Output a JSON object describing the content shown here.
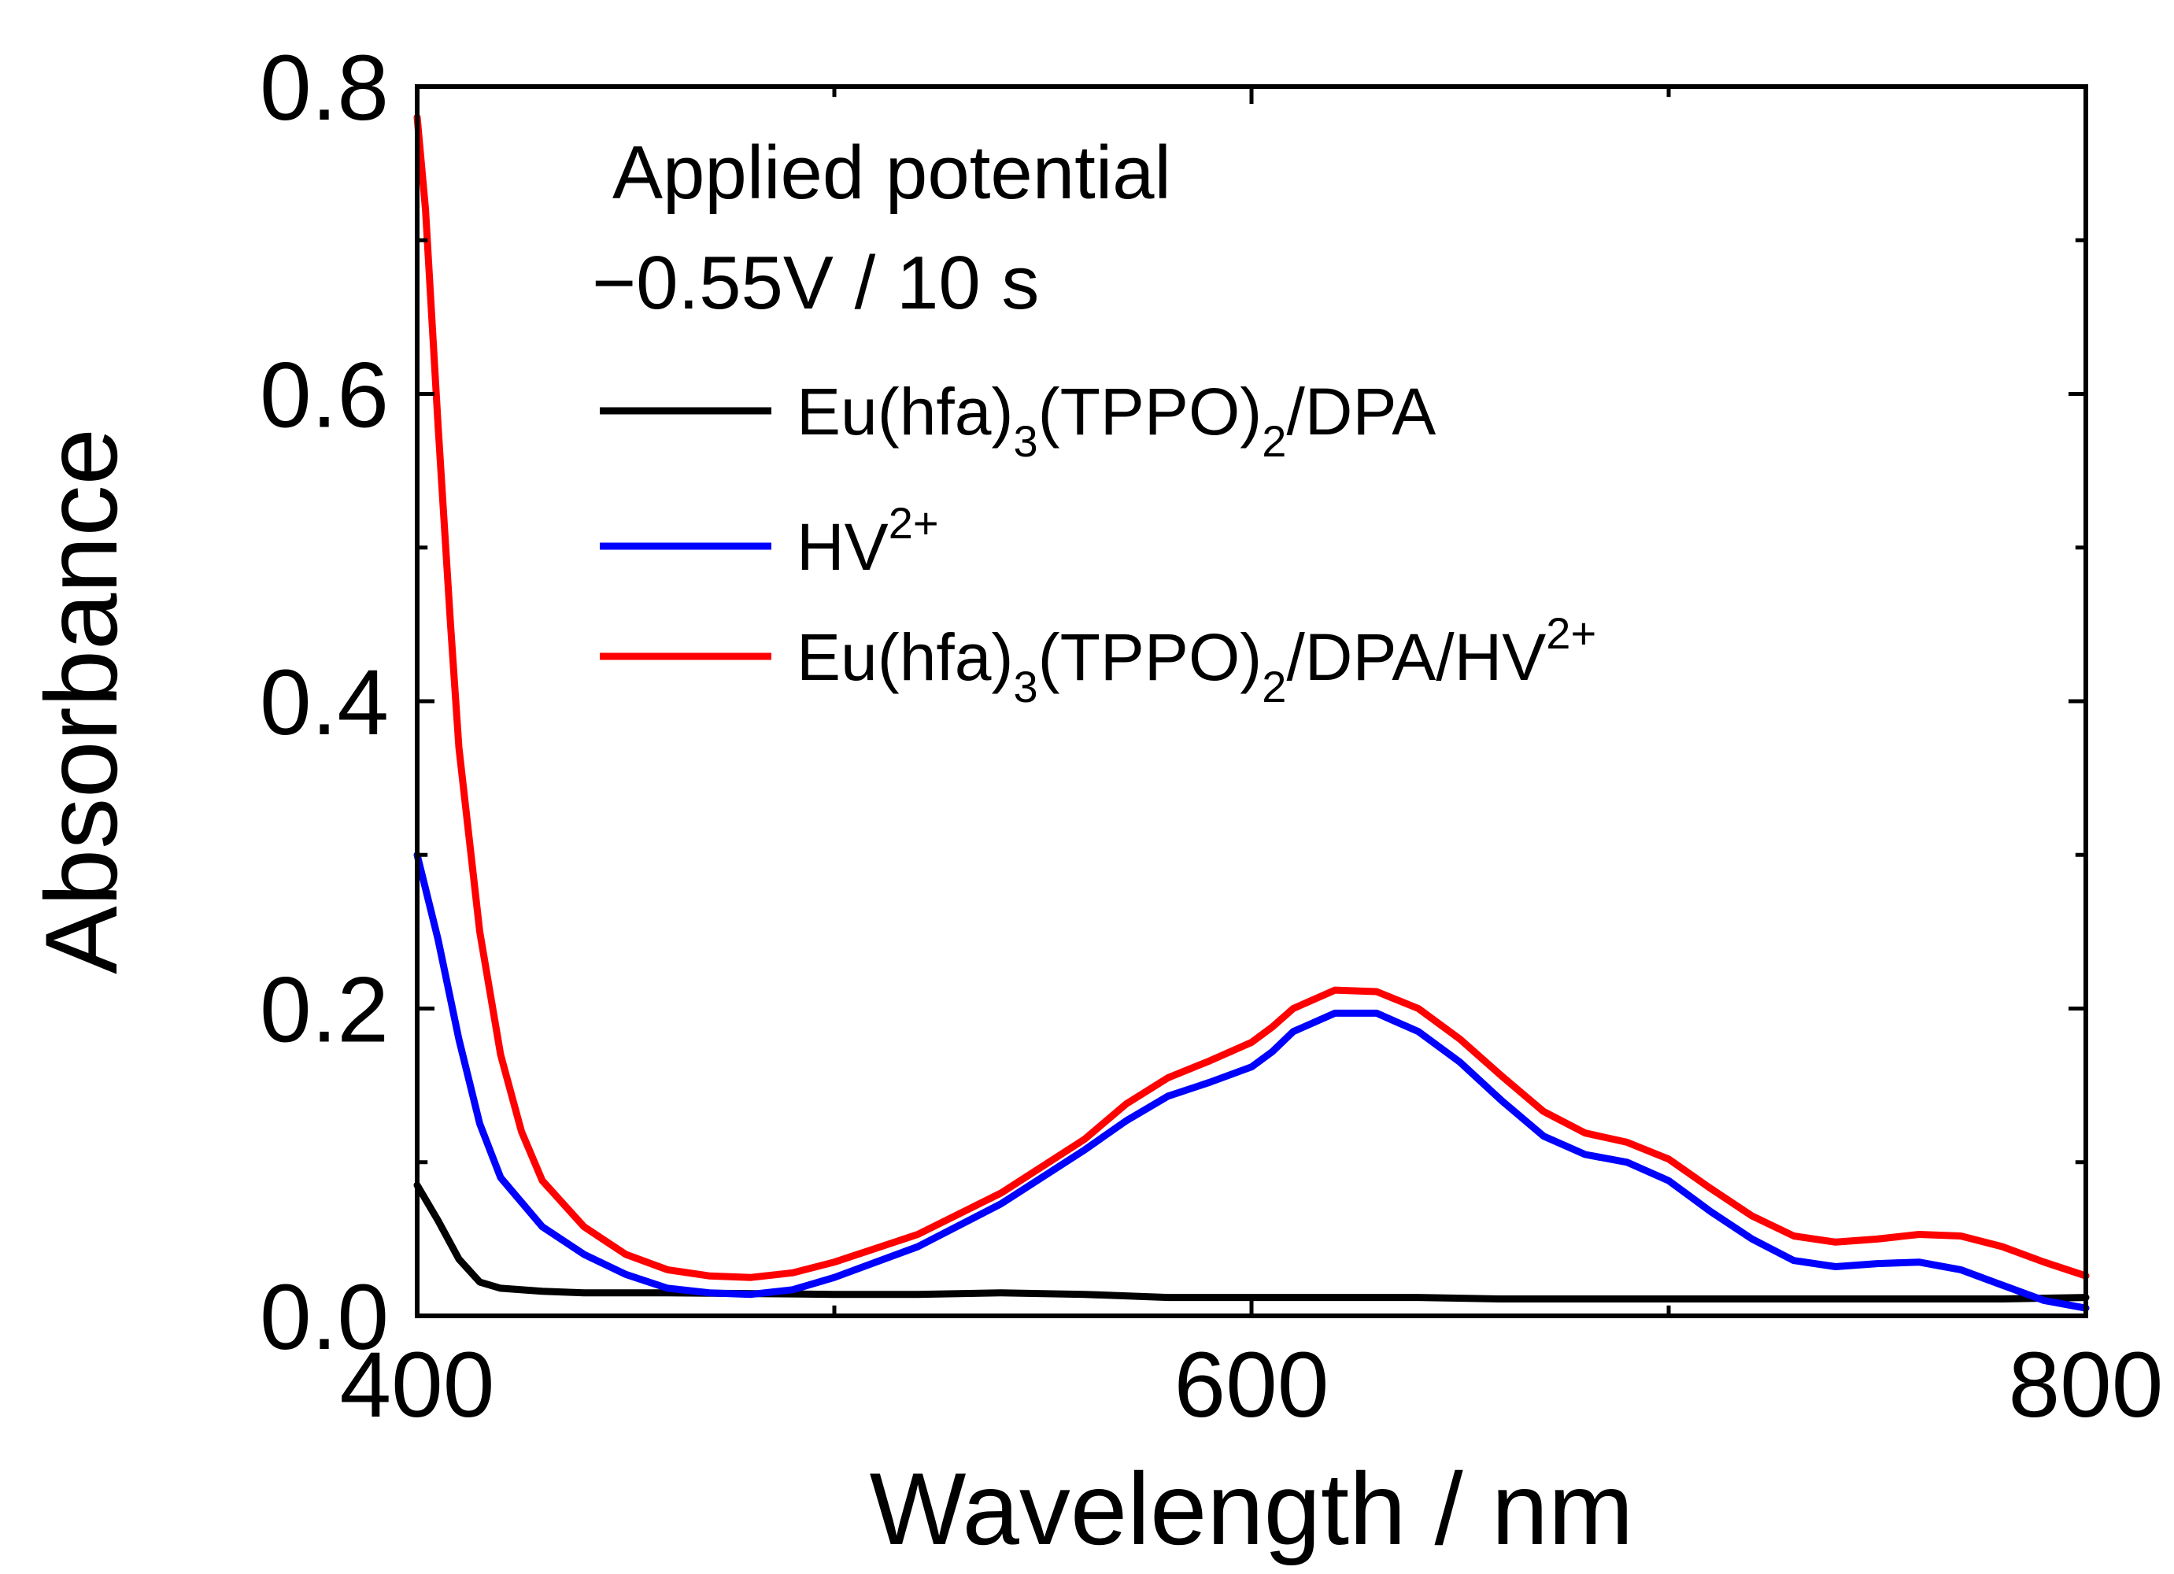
{
  "chart_data": {
    "type": "line",
    "xlabel": "Wavelength / nm",
    "ylabel": "Absorbance",
    "xlim": [
      400,
      800
    ],
    "ylim": [
      0.0,
      0.8
    ],
    "xticks": [
      400,
      600,
      800
    ],
    "xtick_labels": [
      "400",
      "600",
      "800"
    ],
    "yticks": [
      0.0,
      0.2,
      0.4,
      0.6,
      0.8
    ],
    "ytick_labels": [
      "0.0",
      "0.2",
      "0.4",
      "0.6",
      "0.8"
    ],
    "grid": false,
    "legend_position": "top-left",
    "annotation": {
      "line1": "Applied potential",
      "line2": "−0.55V / 10 s"
    },
    "series": [
      {
        "name": "Eu(hfa)3(TPPO)2/DPA",
        "label_parts": {
          "a": "Eu(hfa)",
          "a_sub": "3",
          "b": "(TPPO)",
          "b_sub": "2",
          "c": "/DPA",
          "sup": ""
        },
        "color": "#000000",
        "x": [
          400,
          405,
          410,
          415,
          420,
          430,
          440,
          460,
          500,
          520,
          540,
          560,
          580,
          600,
          620,
          640,
          660,
          680,
          700,
          720,
          740,
          760,
          780,
          800
        ],
        "y": [
          0.085,
          0.062,
          0.037,
          0.022,
          0.018,
          0.016,
          0.015,
          0.015,
          0.014,
          0.014,
          0.015,
          0.014,
          0.012,
          0.012,
          0.012,
          0.012,
          0.011,
          0.011,
          0.011,
          0.011,
          0.011,
          0.011,
          0.011,
          0.012
        ]
      },
      {
        "name": "HV2+",
        "label_parts": {
          "a": "HV",
          "a_sub": "",
          "b": "",
          "b_sub": "",
          "c": "",
          "sup": "2+"
        },
        "color": "#0000ff",
        "x": [
          400,
          405,
          410,
          415,
          420,
          430,
          440,
          450,
          460,
          470,
          480,
          490,
          500,
          520,
          540,
          560,
          570,
          580,
          590,
          600,
          605,
          610,
          620,
          630,
          640,
          650,
          660,
          670,
          680,
          690,
          700,
          710,
          720,
          730,
          740,
          750,
          760,
          770,
          780,
          790,
          800
        ],
        "y": [
          0.3,
          0.245,
          0.18,
          0.125,
          0.09,
          0.058,
          0.04,
          0.027,
          0.018,
          0.015,
          0.014,
          0.017,
          0.025,
          0.045,
          0.073,
          0.108,
          0.127,
          0.143,
          0.152,
          0.162,
          0.172,
          0.185,
          0.197,
          0.197,
          0.185,
          0.165,
          0.14,
          0.117,
          0.105,
          0.1,
          0.088,
          0.068,
          0.05,
          0.036,
          0.032,
          0.034,
          0.035,
          0.03,
          0.02,
          0.01,
          0.005
        ]
      },
      {
        "name": "Eu(hfa)3(TPPO)2/DPA/HV2+",
        "label_parts": {
          "a": "Eu(hfa)",
          "a_sub": "3",
          "b": "(TPPO)",
          "b_sub": "2",
          "c": "/DPA/HV",
          "sup": "2+"
        },
        "color": "#ff0000",
        "x": [
          400,
          402,
          405,
          408,
          410,
          415,
          420,
          425,
          430,
          440,
          450,
          460,
          470,
          480,
          490,
          500,
          520,
          540,
          560,
          570,
          580,
          590,
          600,
          605,
          610,
          620,
          630,
          640,
          650,
          660,
          670,
          680,
          690,
          700,
          710,
          720,
          730,
          740,
          750,
          760,
          770,
          780,
          790,
          800
        ],
        "y": [
          0.78,
          0.72,
          0.58,
          0.45,
          0.37,
          0.25,
          0.17,
          0.12,
          0.088,
          0.058,
          0.04,
          0.03,
          0.026,
          0.025,
          0.028,
          0.035,
          0.053,
          0.08,
          0.115,
          0.138,
          0.155,
          0.166,
          0.178,
          0.188,
          0.2,
          0.212,
          0.211,
          0.2,
          0.18,
          0.156,
          0.133,
          0.119,
          0.113,
          0.102,
          0.083,
          0.065,
          0.052,
          0.048,
          0.05,
          0.053,
          0.052,
          0.045,
          0.035,
          0.026
        ]
      }
    ]
  }
}
